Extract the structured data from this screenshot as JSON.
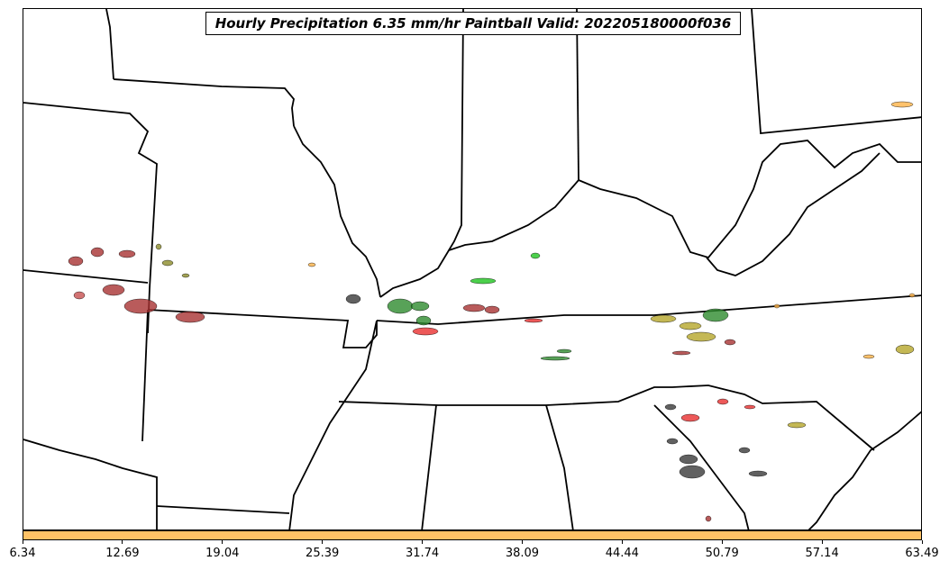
{
  "title": "Hourly Precipitation 6.35 mm/hr Paintball Valid: 202205180000f036",
  "colorbar": {
    "color": "#ffc266",
    "ticks": [
      "6.34",
      "12.69",
      "19.04",
      "25.39",
      "31.74",
      "38.09",
      "44.44",
      "50.79",
      "57.14",
      "63.49"
    ]
  },
  "member_colors": [
    "#a83232",
    "#8c8c2a",
    "#2e8b2e",
    "#e83030",
    "#1fc41f",
    "#3a3a3a",
    "#b5a62a",
    "#ffb347",
    "#c75050"
  ],
  "map": {
    "region": "US Midwest / Southeast",
    "background": "#ffffff",
    "boundary_color": "#000000"
  }
}
